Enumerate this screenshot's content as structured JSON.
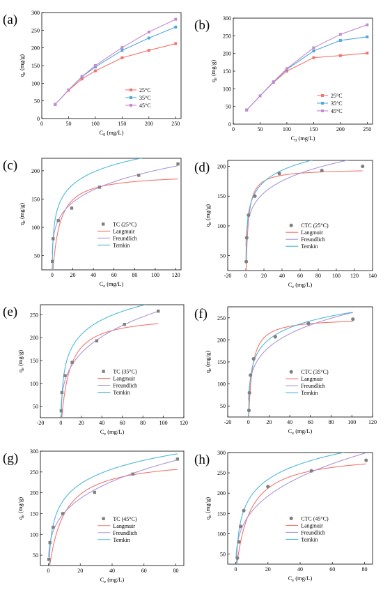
{
  "colors": {
    "c25": "#f4736c",
    "c35": "#4fa8dc",
    "c45": "#c48ad0",
    "langmuir": "#f4736c",
    "freundlich": "#a996d8",
    "temkin": "#4db8d8",
    "tc_marker": "#808080",
    "ctc_marker": "#808080"
  },
  "chart_data": [
    {
      "id": "a",
      "panel_label": "(a)",
      "type": "line",
      "xlabel": "C0 (mg/L)",
      "ylabel": "qe (mg/g)",
      "xlim": [
        0,
        260
      ],
      "ylim": [
        0,
        300
      ],
      "xticks": [
        0,
        50,
        100,
        150,
        200,
        250
      ],
      "yticks": [
        0,
        50,
        100,
        150,
        200,
        250,
        300
      ],
      "x": [
        25,
        50,
        75,
        100,
        150,
        200,
        250
      ],
      "legend_position": "bottom-right",
      "series": [
        {
          "name": "25°C",
          "values": [
            40,
            80,
            112,
            135,
            172,
            193,
            212
          ]
        },
        {
          "name": "35°C",
          "values": [
            40,
            81,
            118,
            146,
            193,
            228,
            259
          ]
        },
        {
          "name": "45°C",
          "values": [
            40,
            81,
            119,
            150,
            201,
            245,
            281
          ]
        }
      ]
    },
    {
      "id": "b",
      "panel_label": "(b)",
      "type": "line",
      "xlabel": "C0 (mg/L)",
      "ylabel": "qe (mg/g)",
      "xlim": [
        0,
        260
      ],
      "ylim": [
        0,
        300
      ],
      "xticks": [
        0,
        50,
        100,
        150,
        200,
        250
      ],
      "yticks": [
        0,
        50,
        100,
        150,
        200,
        250,
        300
      ],
      "x": [
        25,
        50,
        75,
        100,
        150,
        200,
        250
      ],
      "legend_position": "bottom-right",
      "series": [
        {
          "name": "25°C",
          "values": [
            40,
            80,
            118,
            150,
            188,
            194,
            201
          ]
        },
        {
          "name": "35°C",
          "values": [
            40,
            80,
            119,
            155,
            207,
            237,
            247
          ]
        },
        {
          "name": "45°C",
          "values": [
            40,
            80,
            120,
            157,
            216,
            254,
            281
          ]
        }
      ]
    },
    {
      "id": "c",
      "panel_label": "(c)",
      "type": "scatter",
      "xlabel": "Ce (mg/L)",
      "ylabel": "qe (mg/g)",
      "xlim": [
        -10,
        125
      ],
      "ylim": [
        25,
        222
      ],
      "xticks": [
        0,
        20,
        40,
        60,
        80,
        100,
        120
      ],
      "yticks": [
        50,
        100,
        150,
        200
      ],
      "legend_position": "bottom-right",
      "data_series_name": "TC (25°C)",
      "marker": "square",
      "points": [
        [
          0.3,
          40
        ],
        [
          1,
          80
        ],
        [
          6,
          112
        ],
        [
          19,
          134
        ],
        [
          46,
          171
        ],
        [
          84,
          192
        ],
        [
          122,
          212
        ]
      ],
      "fits": [
        {
          "name": "Langmuir",
          "model": "langmuir",
          "params": [
            195,
            0.16
          ]
        },
        {
          "name": "Freundlich",
          "model": "freundlich",
          "params": [
            78,
            0.205
          ]
        },
        {
          "name": "Temkin",
          "model": "temkin",
          "params": [
            32,
            12
          ]
        }
      ]
    },
    {
      "id": "d",
      "panel_label": "(d)",
      "type": "scatter",
      "xlabel": "Ce (mg/L)",
      "ylabel": "qe (mg/g)",
      "xlim": [
        -20,
        140
      ],
      "ylim": [
        25,
        210
      ],
      "xticks": [
        -20,
        0,
        20,
        40,
        60,
        80,
        100,
        120,
        140
      ],
      "yticks": [
        50,
        100,
        150,
        200
      ],
      "legend_position": "bottom-right",
      "data_series_name": "CTC (25°C)",
      "marker": "circle",
      "points": [
        [
          0.5,
          40
        ],
        [
          1,
          80
        ],
        [
          3,
          118
        ],
        [
          10,
          150
        ],
        [
          37,
          188
        ],
        [
          84,
          193
        ],
        [
          129,
          200
        ]
      ],
      "fits": [
        {
          "name": "Langmuir",
          "model": "langmuir",
          "params": [
            196,
            0.42
          ]
        },
        {
          "name": "Freundlich",
          "model": "freundlich",
          "params": [
            92,
            0.175
          ]
        },
        {
          "name": "Temkin",
          "model": "temkin",
          "params": [
            28,
            25
          ]
        }
      ]
    },
    {
      "id": "e",
      "panel_label": "(e)",
      "type": "scatter",
      "xlabel": "Ce (mg/L)",
      "ylabel": "qe (mg/g)",
      "xlim": [
        -20,
        120
      ],
      "ylim": [
        25,
        272
      ],
      "xticks": [
        -20,
        0,
        20,
        40,
        60,
        80,
        100,
        120
      ],
      "yticks": [
        50,
        100,
        150,
        200,
        250
      ],
      "legend_position": "bottom-right",
      "data_series_name": "TC (35°C)",
      "marker": "square",
      "points": [
        [
          0.3,
          40
        ],
        [
          1,
          80
        ],
        [
          4,
          117
        ],
        [
          11,
          146
        ],
        [
          35,
          193
        ],
        [
          62,
          229
        ],
        [
          95,
          258
        ]
      ],
      "fits": [
        {
          "name": "Langmuir",
          "model": "langmuir",
          "params": [
            250,
            0.125
          ]
        },
        {
          "name": "Freundlich",
          "model": "freundlich",
          "params": [
            72,
            0.28
          ]
        },
        {
          "name": "Temkin",
          "model": "temkin",
          "params": [
            46,
            4.5
          ]
        }
      ]
    },
    {
      "id": "f",
      "panel_label": "(f)",
      "type": "scatter",
      "xlabel": "Ce (mg/L)",
      "ylabel": "qe (mg/g)",
      "xlim": [
        -20,
        120
      ],
      "ylim": [
        25,
        275
      ],
      "xticks": [
        -20,
        0,
        20,
        40,
        60,
        80,
        100,
        120
      ],
      "yticks": [
        50,
        100,
        150,
        200,
        250
      ],
      "legend_position": "bottom-right",
      "data_series_name": "CTC (35°C)",
      "marker": "circle",
      "points": [
        [
          0.5,
          40
        ],
        [
          1,
          80
        ],
        [
          2,
          120
        ],
        [
          5,
          157
        ],
        [
          26,
          207
        ],
        [
          58,
          237
        ],
        [
          101,
          247
        ]
      ],
      "fits": [
        {
          "name": "Langmuir",
          "model": "langmuir",
          "params": [
            250,
            0.3
          ]
        },
        {
          "name": "Freundlich",
          "model": "freundlich",
          "params": [
            95,
            0.22
          ]
        },
        {
          "name": "Temkin",
          "model": "temkin",
          "params": [
            38,
            10
          ]
        }
      ]
    },
    {
      "id": "g",
      "panel_label": "(g)",
      "type": "scatter",
      "xlabel": "Ce (mg/L)",
      "ylabel": "qe (mg/g)",
      "xlim": [
        -5,
        85
      ],
      "ylim": [
        25,
        300
      ],
      "xticks": [
        0,
        20,
        40,
        60,
        80
      ],
      "yticks": [
        50,
        100,
        150,
        200,
        250,
        300
      ],
      "legend_position": "bottom-right",
      "data_series_name": "TC (45°C)",
      "marker": "square",
      "points": [
        [
          0.3,
          40
        ],
        [
          1,
          80
        ],
        [
          3,
          117
        ],
        [
          9,
          150
        ],
        [
          29,
          201
        ],
        [
          53,
          245
        ],
        [
          81,
          281
        ]
      ],
      "fits": [
        {
          "name": "Langmuir",
          "model": "langmuir",
          "params": [
            285,
            0.11
          ]
        },
        {
          "name": "Freundlich",
          "model": "freundlich",
          "params": [
            78,
            0.29
          ]
        },
        {
          "name": "Temkin",
          "model": "temkin",
          "params": [
            52,
            3.5
          ]
        }
      ]
    },
    {
      "id": "h",
      "panel_label": "(h)",
      "type": "scatter",
      "xlabel": "Ce (mg/L)",
      "ylabel": "qe (mg/g)",
      "xlim": [
        -5,
        85
      ],
      "ylim": [
        25,
        300
      ],
      "xticks": [
        0,
        20,
        40,
        60,
        80
      ],
      "yticks": [
        50,
        100,
        150,
        200,
        250,
        300
      ],
      "legend_position": "bottom-right",
      "data_series_name": "CTC (45°C)",
      "marker": "circle",
      "points": [
        [
          1,
          40
        ],
        [
          2,
          80
        ],
        [
          3,
          118
        ],
        [
          5,
          157
        ],
        [
          20,
          216
        ],
        [
          47,
          255
        ],
        [
          81,
          281
        ]
      ],
      "fits": [
        {
          "name": "Langmuir",
          "model": "langmuir",
          "params": [
            300,
            0.12
          ]
        },
        {
          "name": "Freundlich",
          "model": "freundlich",
          "params": [
            75,
            0.315
          ]
        },
        {
          "name": "Temkin",
          "model": "temkin",
          "params": [
            55,
            3.5
          ]
        }
      ]
    }
  ]
}
